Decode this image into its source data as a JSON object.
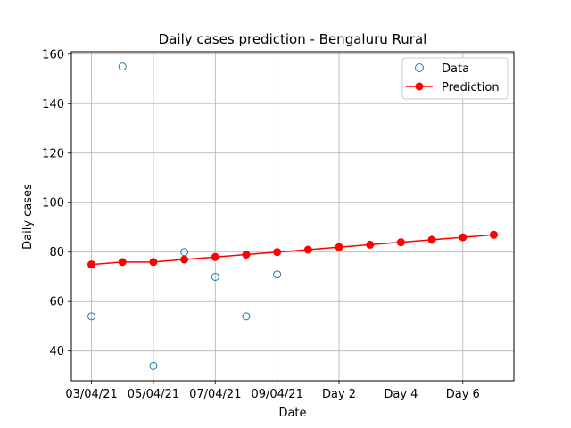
{
  "chart_data": {
    "type": "scatter",
    "title": "Daily cases prediction - Bengaluru Rural",
    "xlabel": "Date",
    "ylabel": "Daily cases",
    "xlim": [
      -0.65,
      13.65
    ],
    "ylim": [
      28,
      161
    ],
    "grid": true,
    "legend_position": "top-right",
    "x_ticks": [
      {
        "x": 0,
        "label": "03/04/21"
      },
      {
        "x": 2,
        "label": "05/04/21"
      },
      {
        "x": 4,
        "label": "07/04/21"
      },
      {
        "x": 6,
        "label": "09/04/21"
      },
      {
        "x": 8,
        "label": "Day 2"
      },
      {
        "x": 10,
        "label": "Day 4"
      },
      {
        "x": 12,
        "label": "Day 6"
      }
    ],
    "y_ticks": [
      40,
      60,
      80,
      100,
      120,
      140,
      160
    ],
    "series": [
      {
        "name": "Data",
        "style": "hollow-circle",
        "color": "#1f77b4",
        "x": [
          0,
          1,
          2,
          3,
          4,
          5,
          6
        ],
        "values": [
          54,
          155,
          34,
          80,
          70,
          54,
          71
        ]
      },
      {
        "name": "Prediction",
        "style": "line-marker",
        "color": "#ff0000",
        "x": [
          0,
          1,
          2,
          3,
          4,
          5,
          6,
          7,
          8,
          9,
          10,
          11,
          12,
          13
        ],
        "values": [
          75,
          76,
          76,
          77,
          78,
          79,
          80,
          81,
          82,
          83,
          84,
          85,
          86,
          87
        ]
      }
    ]
  }
}
